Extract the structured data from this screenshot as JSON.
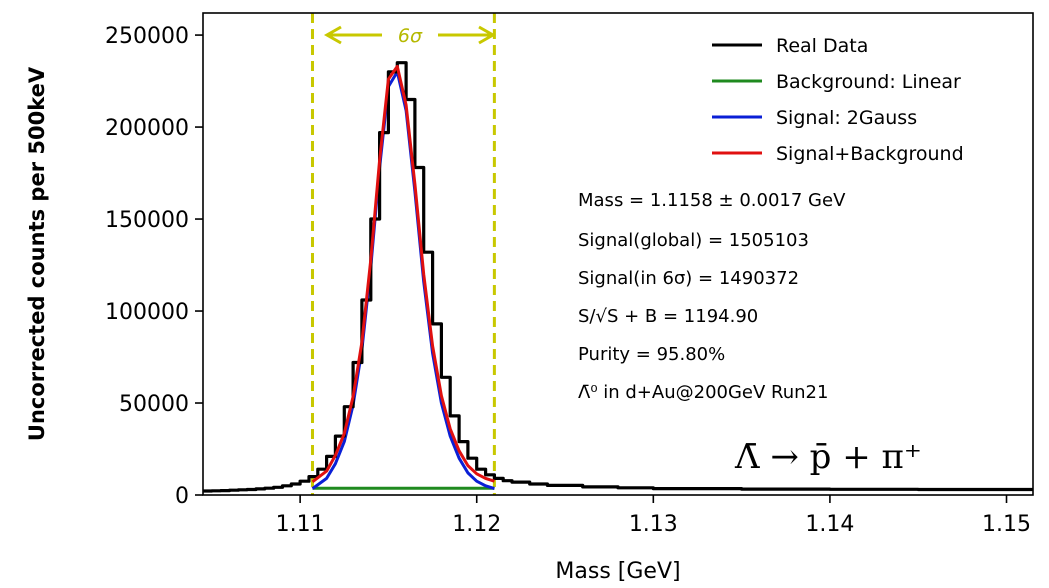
{
  "chart_data": {
    "type": "line",
    "xlabel": "Mass [GeV]",
    "ylabel": "Uncorrected counts per 500keV",
    "xlim": [
      1.1045,
      1.1515
    ],
    "ylim": [
      0,
      262000
    ],
    "xticks": [
      1.11,
      1.12,
      1.13,
      1.14,
      1.15
    ],
    "xtick_labels": [
      "1.11",
      "1.12",
      "1.13",
      "1.14",
      "1.15"
    ],
    "yticks": [
      0,
      50000,
      100000,
      150000,
      200000,
      250000
    ],
    "ytick_labels": [
      "0",
      "50000",
      "100000",
      "150000",
      "200000",
      "250000"
    ],
    "grid": false,
    "legend_position": "top-right",
    "series": [
      {
        "name": "Real Data",
        "color": "#000000",
        "style": "step",
        "x": [
          1.1045,
          1.105,
          1.1055,
          1.106,
          1.1065,
          1.107,
          1.1075,
          1.108,
          1.1085,
          1.109,
          1.1095,
          1.11,
          1.1105,
          1.111,
          1.1115,
          1.112,
          1.1125,
          1.113,
          1.1135,
          1.114,
          1.1145,
          1.115,
          1.1155,
          1.116,
          1.1165,
          1.117,
          1.1175,
          1.118,
          1.1185,
          1.119,
          1.1195,
          1.12,
          1.1205,
          1.121,
          1.1215,
          1.122,
          1.123,
          1.124,
          1.126,
          1.128,
          1.13,
          1.135,
          1.14,
          1.145,
          1.1515
        ],
        "y": [
          2200,
          2300,
          2400,
          2600,
          2800,
          3000,
          3300,
          3700,
          4200,
          5000,
          6000,
          7500,
          10000,
          14000,
          21000,
          32000,
          48000,
          72000,
          106000,
          150000,
          197000,
          230000,
          235000,
          215000,
          178000,
          132000,
          93000,
          64000,
          43000,
          29000,
          20000,
          14000,
          11000,
          9000,
          7800,
          7000,
          6000,
          5200,
          4400,
          3900,
          3500,
          3200,
          3100,
          3000,
          3000
        ]
      },
      {
        "name": "Background: Linear",
        "color": "#1f8a1f",
        "x": [
          1.1107,
          1.121
        ],
        "y": [
          3700,
          3700
        ]
      },
      {
        "name": "Signal: 2Gauss",
        "color": "#0a1fd6",
        "x": [
          1.1107,
          1.1115,
          1.112,
          1.1125,
          1.113,
          1.1135,
          1.114,
          1.1145,
          1.115,
          1.1155,
          1.116,
          1.1165,
          1.117,
          1.1175,
          1.118,
          1.1185,
          1.119,
          1.1195,
          1.12,
          1.1205,
          1.121
        ],
        "y": [
          3500,
          9000,
          17000,
          29000,
          49000,
          79000,
          124000,
          178000,
          222000,
          230000,
          209000,
          165000,
          116000,
          77000,
          50000,
          32000,
          20000,
          12000,
          7500,
          5000,
          3500
        ]
      },
      {
        "name": "Signal+Background",
        "color": "#e01010",
        "x": [
          1.1107,
          1.1115,
          1.112,
          1.1125,
          1.113,
          1.1135,
          1.114,
          1.1145,
          1.115,
          1.1155,
          1.116,
          1.1165,
          1.117,
          1.1175,
          1.118,
          1.1185,
          1.119,
          1.1195,
          1.12,
          1.1205,
          1.121
        ],
        "y": [
          7200,
          13000,
          21500,
          33500,
          53500,
          83000,
          128000,
          182000,
          226000,
          233000,
          212000,
          169000,
          120000,
          81000,
          54000,
          36000,
          24000,
          16000,
          11500,
          9000,
          7500
        ]
      }
    ],
    "window_lines": {
      "x": [
        1.1107,
        1.121
      ],
      "color": "#c8c800",
      "label": "6σ"
    },
    "annotations": [
      "Mass = 1.1158 ± 0.0017 GeV",
      "Signal(global) = 1505103",
      "Signal(in 6σ) = 1490372",
      "S/√S + B = 1194.90",
      "Purity = 95.80%",
      "Λ̄⁰ in d+Au@200GeV Run21"
    ],
    "decay": "Λ̄ → p̄ + π⁺"
  }
}
